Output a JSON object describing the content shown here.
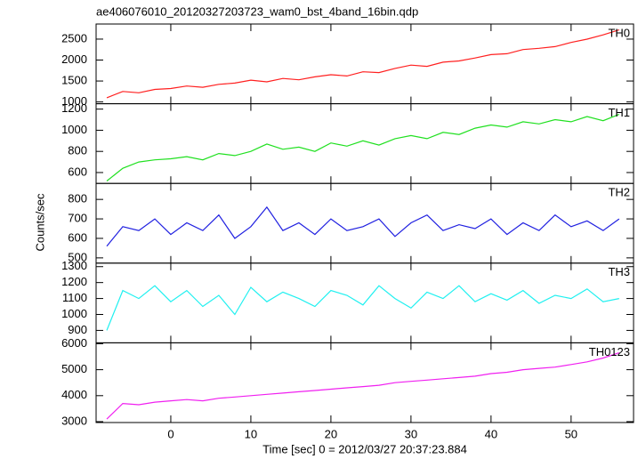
{
  "chart_data": {
    "type": "line",
    "layout": "stacked",
    "title": "ae406076010_20120327203723_wam0_bst_4band_16bin.qdp",
    "ylabel": "Counts/sec",
    "xlabel": "Time [sec] 0 = 2012/03/27 20:37:23.884",
    "xlim": [
      -9.33,
      57.8
    ],
    "xticks": [
      0,
      10,
      20,
      30,
      40,
      50
    ],
    "x": [
      -8,
      -6,
      -4,
      -2,
      0,
      2,
      4,
      6,
      8,
      10,
      12,
      14,
      16,
      18,
      20,
      22,
      24,
      26,
      28,
      30,
      32,
      34,
      36,
      38,
      40,
      42,
      44,
      46,
      48,
      50,
      52,
      54,
      56
    ],
    "series": [
      {
        "name": "TH0",
        "color": "#ff2020",
        "ylim": [
          958,
          2860
        ],
        "yticks": [
          1000,
          1500,
          2000,
          2500
        ],
        "values": [
          1100,
          1250,
          1220,
          1300,
          1320,
          1380,
          1350,
          1420,
          1450,
          1520,
          1480,
          1560,
          1530,
          1600,
          1650,
          1620,
          1720,
          1700,
          1800,
          1880,
          1850,
          1950,
          1980,
          2050,
          2130,
          2150,
          2250,
          2280,
          2320,
          2420,
          2500,
          2600,
          2720
        ]
      },
      {
        "name": "TH1",
        "color": "#20e020",
        "ylim": [
          497,
          1251
        ],
        "yticks": [
          600,
          800,
          1000,
          1200
        ],
        "values": [
          520,
          640,
          700,
          720,
          730,
          750,
          720,
          780,
          760,
          800,
          870,
          820,
          840,
          800,
          880,
          850,
          900,
          860,
          920,
          950,
          920,
          980,
          960,
          1020,
          1050,
          1030,
          1080,
          1060,
          1100,
          1080,
          1130,
          1090,
          1150
        ]
      },
      {
        "name": "TH2",
        "color": "#2020e0",
        "ylim": [
          473,
          882
        ],
        "yticks": [
          500,
          600,
          700,
          800
        ],
        "values": [
          560,
          660,
          640,
          700,
          620,
          680,
          640,
          720,
          600,
          660,
          760,
          640,
          680,
          620,
          700,
          640,
          660,
          700,
          610,
          680,
          720,
          640,
          670,
          650,
          700,
          620,
          680,
          640,
          720,
          660,
          690,
          640,
          700
        ]
      },
      {
        "name": "TH3",
        "color": "#20f0f0",
        "ylim": [
          822,
          1322
        ],
        "yticks": [
          900,
          1000,
          1100,
          1200,
          1300
        ],
        "values": [
          900,
          1150,
          1100,
          1180,
          1080,
          1150,
          1050,
          1120,
          1000,
          1170,
          1080,
          1140,
          1100,
          1050,
          1150,
          1120,
          1060,
          1180,
          1100,
          1040,
          1140,
          1100,
          1180,
          1080,
          1130,
          1090,
          1150,
          1070,
          1120,
          1100,
          1160,
          1080,
          1100
        ]
      },
      {
        "name": "TH0123",
        "color": "#f020f0",
        "ylim": [
          2966,
          6034
        ],
        "yticks": [
          3000,
          4000,
          5000,
          6000
        ],
        "values": [
          3100,
          3700,
          3650,
          3750,
          3800,
          3850,
          3800,
          3900,
          3950,
          4000,
          4050,
          4100,
          4150,
          4200,
          4250,
          4300,
          4350,
          4400,
          4500,
          4550,
          4600,
          4650,
          4700,
          4750,
          4850,
          4900,
          5000,
          5050,
          5100,
          5200,
          5300,
          5450,
          5650
        ]
      }
    ]
  }
}
